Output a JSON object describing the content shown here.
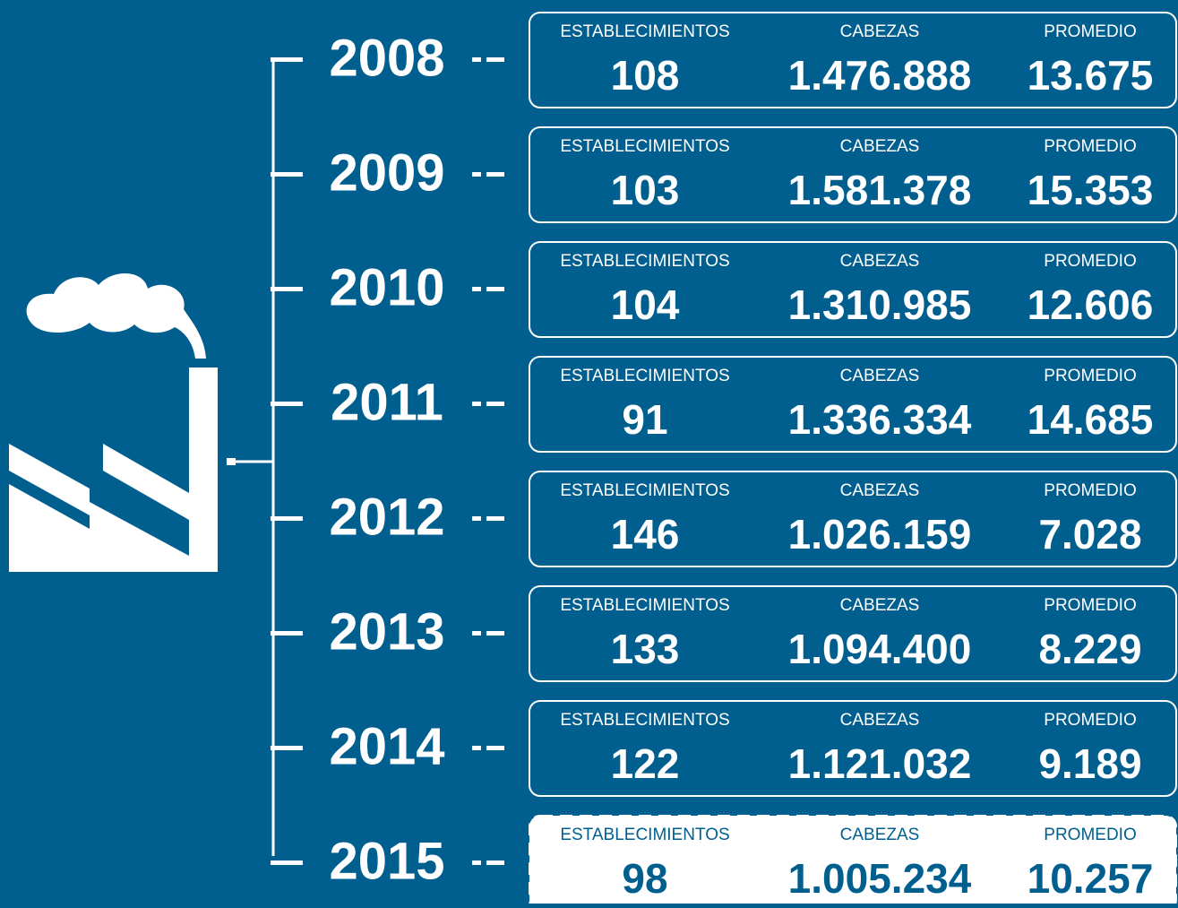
{
  "headers": [
    "ESTABLECIMIENTOS",
    "CABEZAS",
    "PROMEDIO"
  ],
  "rows": [
    {
      "year": "2008",
      "establecimientos": "108",
      "cabezas": "1.476.888",
      "promedio": "13.675"
    },
    {
      "year": "2009",
      "establecimientos": "103",
      "cabezas": "1.581.378",
      "promedio": "15.353"
    },
    {
      "year": "2010",
      "establecimientos": "104",
      "cabezas": "1.310.985",
      "promedio": "12.606"
    },
    {
      "year": "2011",
      "establecimientos": "91",
      "cabezas": "1.336.334",
      "promedio": "14.685"
    },
    {
      "year": "2012",
      "establecimientos": "146",
      "cabezas": "1.026.159",
      "promedio": "7.028"
    },
    {
      "year": "2013",
      "establecimientos": "133",
      "cabezas": "1.094.400",
      "promedio": "8.229"
    },
    {
      "year": "2014",
      "establecimientos": "122",
      "cabezas": "1.121.032",
      "promedio": "9.189"
    },
    {
      "year": "2015",
      "establecimientos": "98",
      "cabezas": "1.005.234",
      "promedio": "10.257"
    }
  ]
}
